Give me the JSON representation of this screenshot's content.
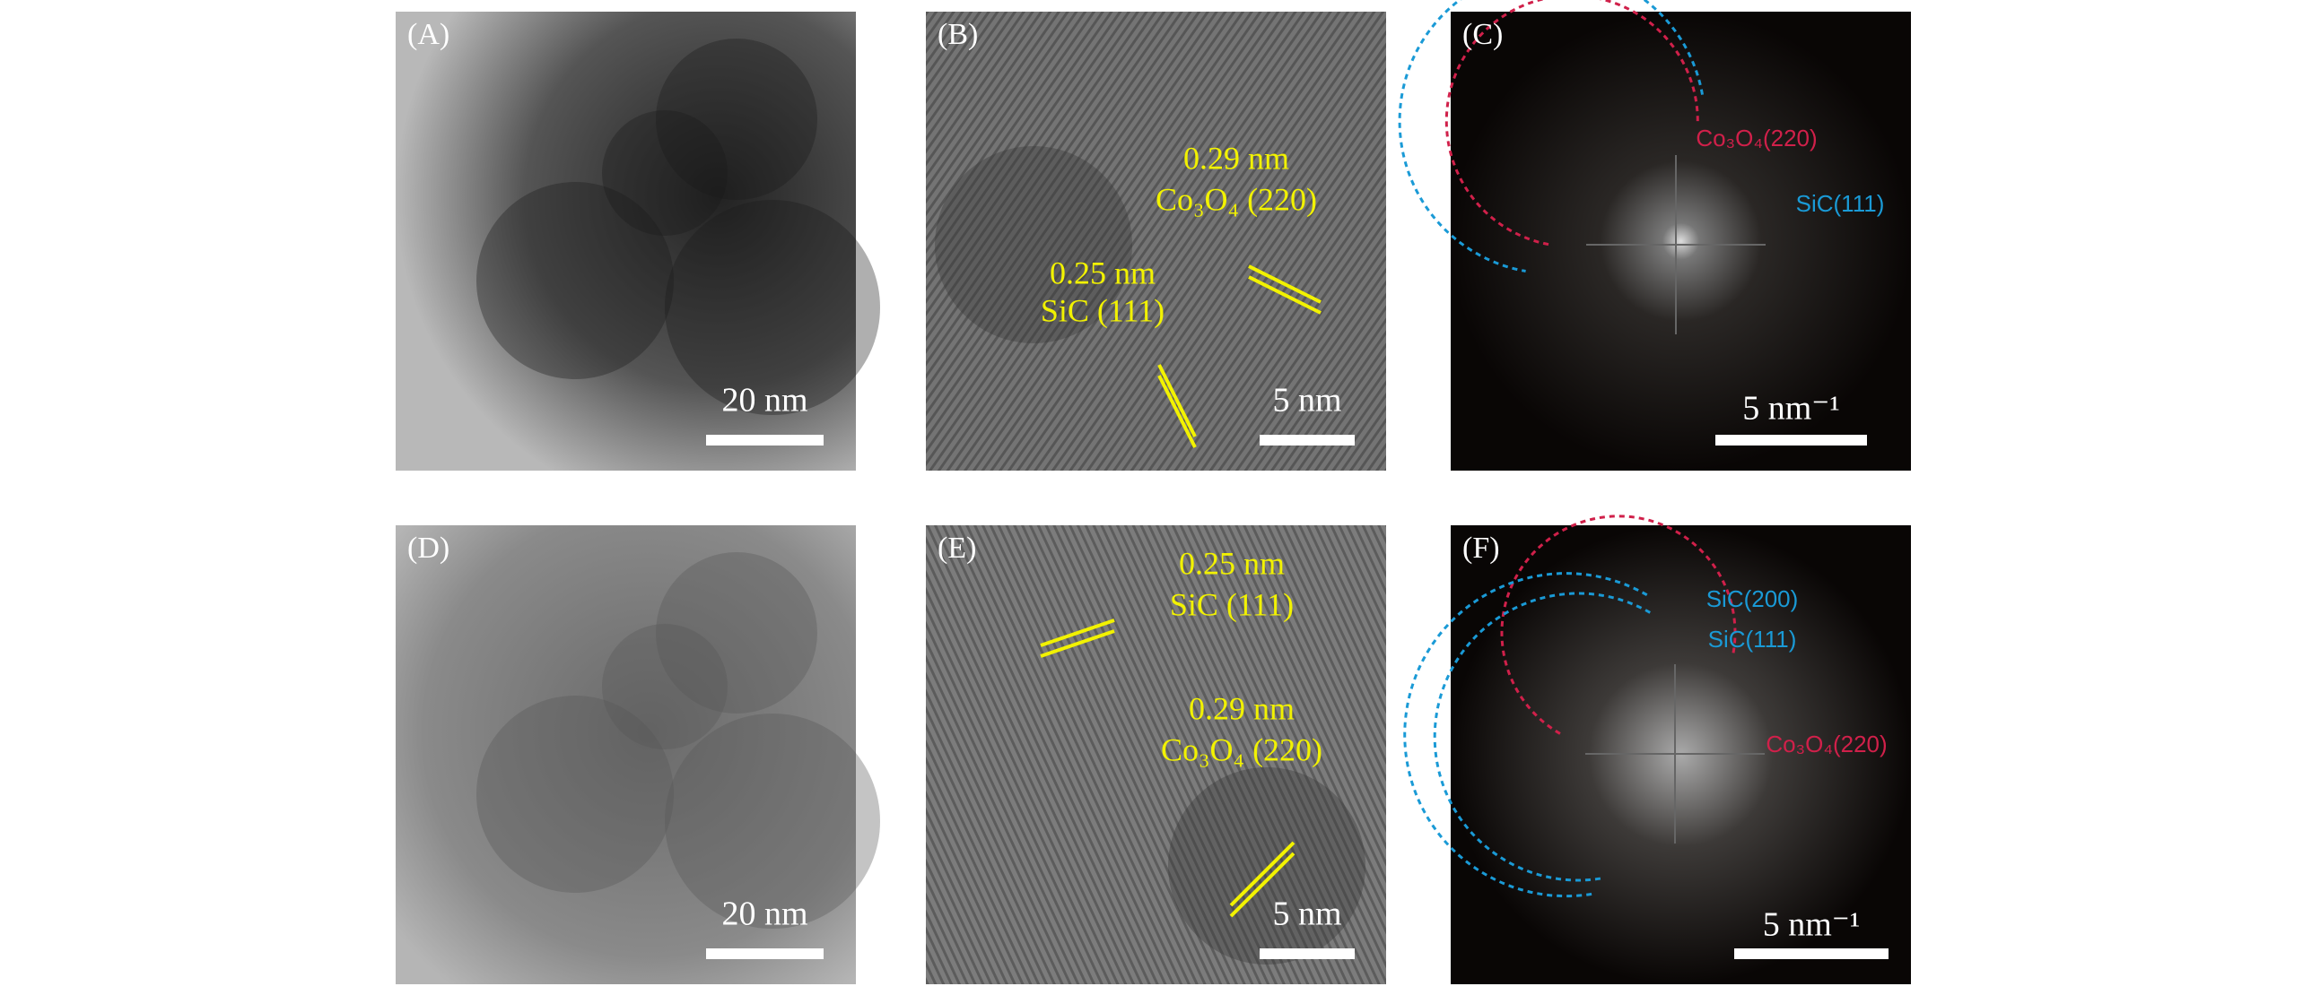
{
  "panels": [
    {
      "label": "(A)",
      "scale_bar": "20 nm",
      "annotations": []
    },
    {
      "label": "(B)",
      "scale_bar": "5 nm",
      "annotations": [
        "0.29 nm",
        "Co₃O₄ (220)",
        "0.25 nm",
        "SiC (111)"
      ]
    },
    {
      "label": "(C)",
      "scale_bar": "5 nm⁻¹",
      "annotations": [
        "Co₃O₄(220)",
        "SiC(111)"
      ]
    },
    {
      "label": "(D)",
      "scale_bar": "20 nm",
      "annotations": []
    },
    {
      "label": "(E)",
      "scale_bar": "5 nm",
      "annotations": [
        "0.25 nm",
        "SiC (111)",
        "0.29 nm",
        "Co₃O₄ (220)"
      ]
    },
    {
      "label": "(F)",
      "scale_bar": "5 nm⁻¹",
      "annotations": [
        "SiC(200)",
        "SiC(111)",
        "Co₃O₄(220)"
      ]
    }
  ]
}
